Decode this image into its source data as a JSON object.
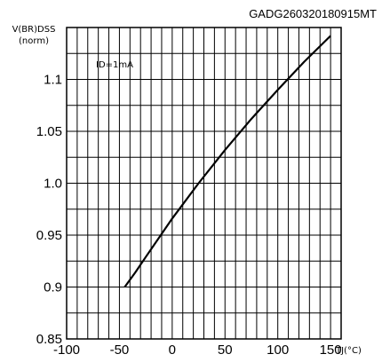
{
  "chart_data": {
    "type": "line",
    "code": "GADG260320180915MT",
    "ylabel_line1": "V(BR)DSS",
    "ylabel_line2": "(norm)",
    "xlabel": "TJ(°C)",
    "annotation": "ID=1mA",
    "xlim": [
      -100,
      160
    ],
    "ylim": [
      0.85,
      1.15
    ],
    "x_ticks": [
      -100,
      -50,
      0,
      50,
      100,
      150
    ],
    "x_tick_labels": [
      "-100",
      "-50",
      "0",
      "50",
      "100",
      "150"
    ],
    "y_ticks": [
      0.85,
      0.9,
      0.95,
      1.0,
      1.05,
      1.1
    ],
    "y_tick_labels": [
      "0.85",
      "0.9",
      "0.95",
      "1.0",
      "1.05",
      "1.1"
    ],
    "grid": true,
    "series": [
      {
        "x": [
          -45,
          -35,
          -25,
          0,
          25,
          50,
          75,
          100,
          125,
          150
        ],
        "y": [
          0.9,
          0.914,
          0.929,
          0.966,
          1.0,
          1.032,
          1.062,
          1.09,
          1.117,
          1.142
        ]
      }
    ]
  }
}
